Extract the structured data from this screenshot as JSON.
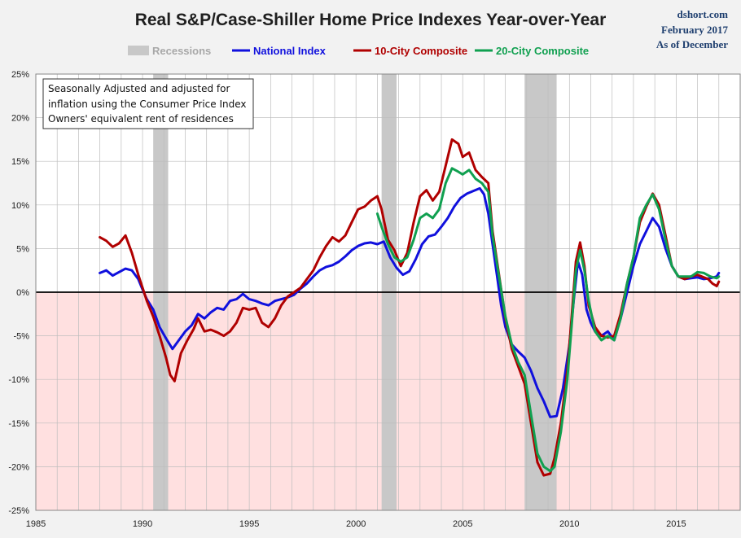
{
  "header": {
    "title": "Real S&P/Case-Shiller Home Price Indexes Year-over-Year",
    "source_lines": [
      "dshort.com",
      "February 2017",
      "As of December"
    ]
  },
  "annotation": {
    "lines": [
      "Seasonally Adjusted and adjusted for",
      "inflation using the Consumer Price Index",
      "Owners' equivalent rent of residences"
    ]
  },
  "chart_data": {
    "type": "line",
    "xlim": [
      1985,
      2018
    ],
    "ylim": [
      -25,
      25
    ],
    "x_ticks": [
      1985,
      1990,
      1995,
      2000,
      2005,
      2010,
      2015
    ],
    "x_tick_labels": [
      "1985",
      "1990",
      "1995",
      "2000",
      "2005",
      "2010",
      "2015"
    ],
    "y_ticks": [
      -25,
      -20,
      -15,
      -10,
      -5,
      0,
      5,
      10,
      15,
      20,
      25
    ],
    "y_tick_labels": [
      "-25%",
      "-20%",
      "-15%",
      "-10%",
      "-5%",
      "0%",
      "5%",
      "10%",
      "15%",
      "20%",
      "25%"
    ],
    "grid": true,
    "legend_position": "top",
    "recessions_label": "Recessions",
    "recessions": [
      [
        1990.5,
        1991.2
      ],
      [
        2001.2,
        2001.9
      ],
      [
        2007.9,
        2009.4
      ]
    ],
    "negative_region_color": "#ffe0e0",
    "recession_color": "#c8c8c8",
    "series": [
      {
        "name": "National Index",
        "color": "#1010dd",
        "points": [
          [
            1988.0,
            2.2
          ],
          [
            1988.3,
            2.5
          ],
          [
            1988.6,
            1.9
          ],
          [
            1988.9,
            2.3
          ],
          [
            1989.2,
            2.7
          ],
          [
            1989.5,
            2.5
          ],
          [
            1989.8,
            1.5
          ],
          [
            1990.0,
            0.3
          ],
          [
            1990.2,
            -0.8
          ],
          [
            1990.5,
            -2.0
          ],
          [
            1990.8,
            -4.0
          ],
          [
            1991.1,
            -5.3
          ],
          [
            1991.4,
            -6.5
          ],
          [
            1991.7,
            -5.5
          ],
          [
            1992.0,
            -4.5
          ],
          [
            1992.3,
            -3.8
          ],
          [
            1992.6,
            -2.5
          ],
          [
            1992.9,
            -3.0
          ],
          [
            1993.2,
            -2.3
          ],
          [
            1993.5,
            -1.8
          ],
          [
            1993.8,
            -2.0
          ],
          [
            1994.1,
            -1.0
          ],
          [
            1994.4,
            -0.8
          ],
          [
            1994.7,
            -0.2
          ],
          [
            1995.0,
            -0.8
          ],
          [
            1995.3,
            -1.0
          ],
          [
            1995.6,
            -1.3
          ],
          [
            1995.9,
            -1.5
          ],
          [
            1996.2,
            -1.0
          ],
          [
            1996.5,
            -0.8
          ],
          [
            1996.8,
            -0.6
          ],
          [
            1997.1,
            -0.3
          ],
          [
            1997.4,
            0.4
          ],
          [
            1997.7,
            1.0
          ],
          [
            1998.0,
            1.8
          ],
          [
            1998.3,
            2.5
          ],
          [
            1998.6,
            2.9
          ],
          [
            1998.9,
            3.1
          ],
          [
            1999.2,
            3.5
          ],
          [
            1999.5,
            4.1
          ],
          [
            1999.8,
            4.8
          ],
          [
            2000.1,
            5.3
          ],
          [
            2000.4,
            5.6
          ],
          [
            2000.7,
            5.7
          ],
          [
            2001.0,
            5.5
          ],
          [
            2001.3,
            5.8
          ],
          [
            2001.6,
            4.0
          ],
          [
            2001.9,
            2.8
          ],
          [
            2002.2,
            2.0
          ],
          [
            2002.5,
            2.4
          ],
          [
            2002.8,
            3.8
          ],
          [
            2003.1,
            5.5
          ],
          [
            2003.4,
            6.4
          ],
          [
            2003.7,
            6.6
          ],
          [
            2004.0,
            7.5
          ],
          [
            2004.3,
            8.5
          ],
          [
            2004.6,
            9.8
          ],
          [
            2004.9,
            10.8
          ],
          [
            2005.2,
            11.3
          ],
          [
            2005.5,
            11.6
          ],
          [
            2005.8,
            11.9
          ],
          [
            2006.0,
            11.2
          ],
          [
            2006.2,
            9.0
          ],
          [
            2006.4,
            5.5
          ],
          [
            2006.6,
            2.0
          ],
          [
            2006.8,
            -1.5
          ],
          [
            2007.0,
            -4.0
          ],
          [
            2007.3,
            -6.0
          ],
          [
            2007.6,
            -6.8
          ],
          [
            2007.9,
            -7.5
          ],
          [
            2008.2,
            -9.0
          ],
          [
            2008.5,
            -11.0
          ],
          [
            2008.8,
            -12.5
          ],
          [
            2009.1,
            -14.3
          ],
          [
            2009.4,
            -14.2
          ],
          [
            2009.7,
            -11.0
          ],
          [
            2010.0,
            -6.0
          ],
          [
            2010.2,
            -1.0
          ],
          [
            2010.4,
            3.5
          ],
          [
            2010.6,
            2.0
          ],
          [
            2010.8,
            -2.0
          ],
          [
            2011.0,
            -3.5
          ],
          [
            2011.2,
            -4.5
          ],
          [
            2011.5,
            -5.0
          ],
          [
            2011.8,
            -4.5
          ],
          [
            2012.1,
            -5.5
          ],
          [
            2012.4,
            -3.0
          ],
          [
            2012.7,
            0.0
          ],
          [
            2013.0,
            3.0
          ],
          [
            2013.3,
            5.5
          ],
          [
            2013.6,
            7.0
          ],
          [
            2013.9,
            8.5
          ],
          [
            2014.2,
            7.5
          ],
          [
            2014.5,
            5.0
          ],
          [
            2014.8,
            3.0
          ],
          [
            2015.1,
            1.8
          ],
          [
            2015.4,
            1.5
          ],
          [
            2015.7,
            1.6
          ],
          [
            2016.0,
            1.7
          ],
          [
            2016.3,
            1.5
          ],
          [
            2016.6,
            1.6
          ],
          [
            2016.9,
            1.8
          ],
          [
            2017.0,
            2.2
          ]
        ]
      },
      {
        "name": "10-City Composite",
        "color": "#b00000",
        "points": [
          [
            1988.0,
            6.3
          ],
          [
            1988.3,
            5.9
          ],
          [
            1988.6,
            5.2
          ],
          [
            1988.9,
            5.6
          ],
          [
            1989.2,
            6.5
          ],
          [
            1989.5,
            4.5
          ],
          [
            1989.8,
            2.0
          ],
          [
            1990.0,
            0.5
          ],
          [
            1990.2,
            -1.0
          ],
          [
            1990.5,
            -2.8
          ],
          [
            1990.8,
            -5.0
          ],
          [
            1991.1,
            -7.5
          ],
          [
            1991.3,
            -9.5
          ],
          [
            1991.5,
            -10.2
          ],
          [
            1991.8,
            -7.0
          ],
          [
            1992.1,
            -5.5
          ],
          [
            1992.4,
            -4.2
          ],
          [
            1992.6,
            -3.0
          ],
          [
            1992.9,
            -4.5
          ],
          [
            1993.2,
            -4.3
          ],
          [
            1993.5,
            -4.6
          ],
          [
            1993.8,
            -5.0
          ],
          [
            1994.1,
            -4.5
          ],
          [
            1994.4,
            -3.5
          ],
          [
            1994.7,
            -1.8
          ],
          [
            1995.0,
            -2.0
          ],
          [
            1995.3,
            -1.8
          ],
          [
            1995.6,
            -3.5
          ],
          [
            1995.9,
            -4.0
          ],
          [
            1996.2,
            -3.0
          ],
          [
            1996.5,
            -1.5
          ],
          [
            1996.8,
            -0.5
          ],
          [
            1997.1,
            0.0
          ],
          [
            1997.4,
            0.5
          ],
          [
            1997.7,
            1.5
          ],
          [
            1998.0,
            2.5
          ],
          [
            1998.3,
            4.0
          ],
          [
            1998.6,
            5.3
          ],
          [
            1998.9,
            6.3
          ],
          [
            1999.2,
            5.8
          ],
          [
            1999.5,
            6.5
          ],
          [
            1999.8,
            8.0
          ],
          [
            2000.1,
            9.5
          ],
          [
            2000.4,
            9.8
          ],
          [
            2000.7,
            10.5
          ],
          [
            2001.0,
            11.0
          ],
          [
            2001.2,
            9.5
          ],
          [
            2001.5,
            6.0
          ],
          [
            2001.8,
            4.8
          ],
          [
            2002.1,
            3.0
          ],
          [
            2002.4,
            4.5
          ],
          [
            2002.7,
            8.0
          ],
          [
            2003.0,
            11.0
          ],
          [
            2003.3,
            11.7
          ],
          [
            2003.6,
            10.5
          ],
          [
            2003.9,
            11.5
          ],
          [
            2004.2,
            14.5
          ],
          [
            2004.5,
            17.5
          ],
          [
            2004.8,
            17.0
          ],
          [
            2005.0,
            15.5
          ],
          [
            2005.3,
            16.0
          ],
          [
            2005.6,
            14.0
          ],
          [
            2005.9,
            13.2
          ],
          [
            2006.2,
            12.5
          ],
          [
            2006.4,
            7.0
          ],
          [
            2006.7,
            2.0
          ],
          [
            2007.0,
            -3.0
          ],
          [
            2007.3,
            -6.5
          ],
          [
            2007.6,
            -8.5
          ],
          [
            2007.9,
            -10.5
          ],
          [
            2008.2,
            -15.0
          ],
          [
            2008.5,
            -19.5
          ],
          [
            2008.8,
            -21.0
          ],
          [
            2009.1,
            -20.8
          ],
          [
            2009.3,
            -19.0
          ],
          [
            2009.6,
            -15.0
          ],
          [
            2009.9,
            -9.0
          ],
          [
            2010.1,
            -3.0
          ],
          [
            2010.3,
            3.5
          ],
          [
            2010.5,
            5.7
          ],
          [
            2010.7,
            3.0
          ],
          [
            2010.9,
            -1.5
          ],
          [
            2011.2,
            -4.0
          ],
          [
            2011.5,
            -5.0
          ],
          [
            2011.8,
            -5.2
          ],
          [
            2012.1,
            -5.0
          ],
          [
            2012.4,
            -2.5
          ],
          [
            2012.7,
            1.0
          ],
          [
            2013.0,
            4.0
          ],
          [
            2013.3,
            8.0
          ],
          [
            2013.6,
            9.8
          ],
          [
            2013.9,
            11.3
          ],
          [
            2014.2,
            10.0
          ],
          [
            2014.5,
            6.5
          ],
          [
            2014.8,
            3.0
          ],
          [
            2015.1,
            1.8
          ],
          [
            2015.4,
            1.5
          ],
          [
            2015.7,
            1.8
          ],
          [
            2016.0,
            2.0
          ],
          [
            2016.3,
            1.7
          ],
          [
            2016.5,
            1.5
          ],
          [
            2016.7,
            1.0
          ],
          [
            2016.9,
            0.7
          ],
          [
            2017.0,
            1.2
          ]
        ]
      },
      {
        "name": "20-City Composite",
        "color": "#10a050",
        "points": [
          [
            2001.0,
            9.0
          ],
          [
            2001.2,
            7.5
          ],
          [
            2001.5,
            5.5
          ],
          [
            2001.8,
            4.0
          ],
          [
            2002.1,
            3.5
          ],
          [
            2002.4,
            4.0
          ],
          [
            2002.7,
            6.0
          ],
          [
            2003.0,
            8.5
          ],
          [
            2003.3,
            9.0
          ],
          [
            2003.6,
            8.5
          ],
          [
            2003.9,
            9.5
          ],
          [
            2004.2,
            12.5
          ],
          [
            2004.5,
            14.2
          ],
          [
            2004.8,
            13.8
          ],
          [
            2005.0,
            13.5
          ],
          [
            2005.3,
            14.0
          ],
          [
            2005.6,
            13.0
          ],
          [
            2005.9,
            12.5
          ],
          [
            2006.2,
            11.5
          ],
          [
            2006.4,
            6.5
          ],
          [
            2006.7,
            1.8
          ],
          [
            2007.0,
            -2.8
          ],
          [
            2007.3,
            -6.0
          ],
          [
            2007.6,
            -8.0
          ],
          [
            2007.9,
            -9.5
          ],
          [
            2008.2,
            -14.0
          ],
          [
            2008.5,
            -18.5
          ],
          [
            2008.8,
            -20.0
          ],
          [
            2009.1,
            -20.5
          ],
          [
            2009.3,
            -20.0
          ],
          [
            2009.6,
            -16.0
          ],
          [
            2009.9,
            -10.0
          ],
          [
            2010.1,
            -4.0
          ],
          [
            2010.3,
            2.5
          ],
          [
            2010.5,
            4.8
          ],
          [
            2010.7,
            2.5
          ],
          [
            2010.9,
            -1.0
          ],
          [
            2011.2,
            -4.5
          ],
          [
            2011.5,
            -5.5
          ],
          [
            2011.8,
            -5.0
          ],
          [
            2012.1,
            -5.5
          ],
          [
            2012.4,
            -3.0
          ],
          [
            2012.7,
            1.0
          ],
          [
            2013.0,
            4.0
          ],
          [
            2013.3,
            8.5
          ],
          [
            2013.6,
            10.0
          ],
          [
            2013.9,
            11.2
          ],
          [
            2014.2,
            9.5
          ],
          [
            2014.5,
            6.0
          ],
          [
            2014.8,
            3.0
          ],
          [
            2015.1,
            1.8
          ],
          [
            2015.4,
            1.8
          ],
          [
            2015.7,
            1.8
          ],
          [
            2016.0,
            2.3
          ],
          [
            2016.3,
            2.2
          ],
          [
            2016.6,
            1.8
          ],
          [
            2016.9,
            1.6
          ],
          [
            2017.0,
            1.8
          ]
        ]
      }
    ]
  }
}
